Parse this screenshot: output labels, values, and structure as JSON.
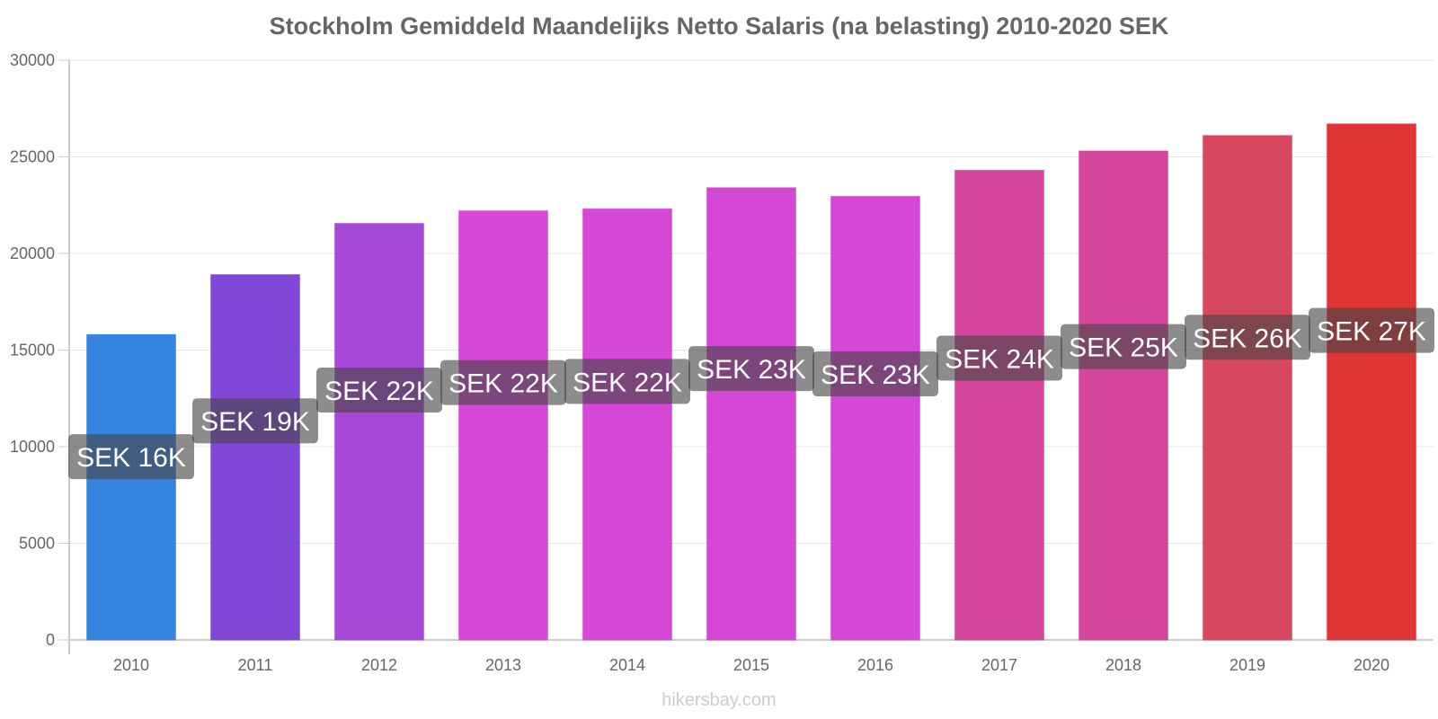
{
  "title": "Stockholm Gemiddeld Maandelijks Netto Salaris (na belasting) 2010-2020 SEK",
  "watermark": "hikersbay.com",
  "chart_data": {
    "type": "bar",
    "title": "Stockholm Gemiddeld Maandelijks Netto Salaris (na belasting) 2010-2020 SEK",
    "xlabel": "",
    "ylabel": "",
    "ylim": [
      0,
      30000
    ],
    "y_ticks": [
      0,
      5000,
      10000,
      15000,
      20000,
      25000,
      30000
    ],
    "grid": true,
    "legend": "none",
    "categories": [
      "2010",
      "2011",
      "2012",
      "2013",
      "2014",
      "2015",
      "2016",
      "2017",
      "2018",
      "2019",
      "2020"
    ],
    "values": [
      15800,
      18900,
      21550,
      22200,
      22300,
      23400,
      22950,
      24300,
      25300,
      26100,
      26700
    ],
    "data_labels": [
      "SEK 16K",
      "SEK 19K",
      "SEK 22K",
      "SEK 22K",
      "SEK 22K",
      "SEK 23K",
      "SEK 23K",
      "SEK 24K",
      "SEK 25K",
      "SEK 26K",
      "SEK 27K"
    ],
    "colors": [
      "#3584e0",
      "#8347d8",
      "#a648d8",
      "#d548d5",
      "#d548d5",
      "#d548d5",
      "#d548d5",
      "#d5479c",
      "#d5479c",
      "#d7485f",
      "#e03535"
    ]
  }
}
